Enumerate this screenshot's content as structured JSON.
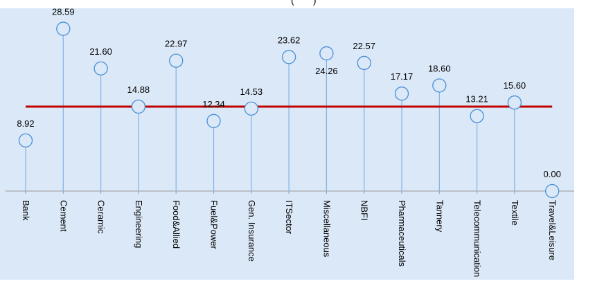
{
  "title_fragment": "(       )",
  "chart_data": {
    "type": "lollipop",
    "categories": [
      "Bank",
      "Cement",
      "Ceramic",
      "Engineering",
      "Food&Allied",
      "Fuel&Power",
      "Gen. Insurance",
      "ITSector",
      "Miscellaneous",
      "NBFI",
      "Pharmaceuticals",
      "Tannery",
      "Telecommunication",
      "Textile",
      "Travel&Leisure"
    ],
    "values": [
      8.92,
      28.59,
      21.6,
      14.88,
      22.97,
      12.34,
      14.53,
      23.62,
      24.26,
      22.57,
      17.17,
      18.6,
      13.21,
      15.6,
      0.0
    ],
    "labels": [
      "8.92",
      "28.59",
      "21.60",
      "14.88",
      "22.97",
      "12.34",
      "14.53",
      "23.62",
      "24.26",
      "22.57",
      "17.17",
      "18.60",
      "13.21",
      "15.60",
      "0.00"
    ],
    "reference_line": 14.88,
    "ylim": [
      0,
      32
    ],
    "colors": {
      "stem": "#7fb2e5",
      "marker_fill": "#dbe8f7",
      "marker_stroke": "#4a8fd6",
      "reference": "#c00000",
      "axis": "#9a9a9a"
    }
  }
}
